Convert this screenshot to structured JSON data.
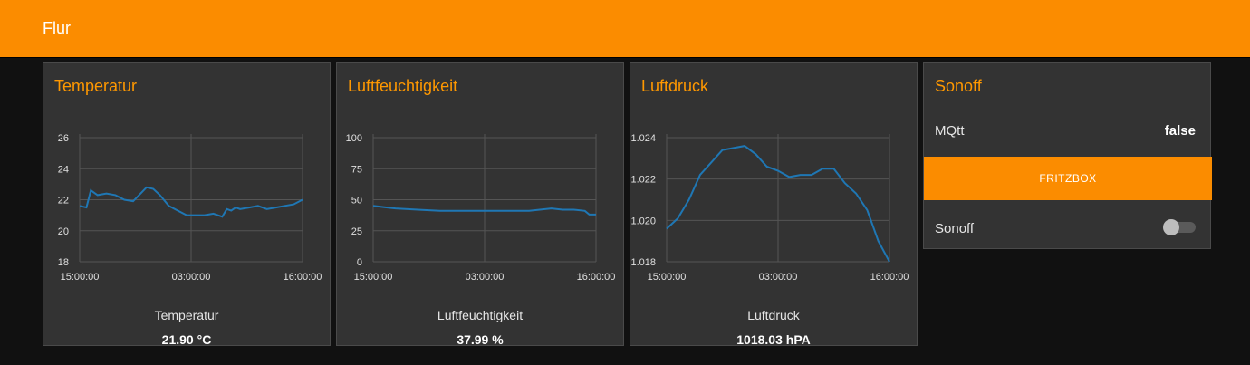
{
  "header": {
    "title": "Flur"
  },
  "colors": {
    "accent": "#fb8c00",
    "line": "#1f77b4"
  },
  "charts": [
    {
      "title": "Temperatur",
      "gauge_label": "Temperatur",
      "gauge_value": "21.90 °C",
      "y_ticks": [
        "26",
        "24",
        "22",
        "20",
        "18"
      ],
      "x_ticks": [
        "15:00:00",
        "03:00:00",
        "16:00:00"
      ]
    },
    {
      "title": "Luftfeuchtigkeit",
      "gauge_label": "Luftfeuchtigkeit",
      "gauge_value": "37.99 %",
      "y_ticks": [
        "100",
        "75",
        "50",
        "25",
        "0"
      ],
      "x_ticks": [
        "15:00:00",
        "03:00:00",
        "16:00:00"
      ]
    },
    {
      "title": "Luftdruck",
      "gauge_label": "Luftdruck",
      "gauge_value": "1018.03 hPA",
      "y_ticks": [
        "1.024",
        "1.022",
        "1.020",
        "1.018"
      ],
      "x_ticks": [
        "15:00:00",
        "03:00:00",
        "16:00:00"
      ]
    }
  ],
  "chart_data": [
    {
      "type": "line",
      "title": "Temperatur",
      "ylim": [
        18,
        26
      ],
      "x": [
        0.0,
        0.03,
        0.05,
        0.08,
        0.12,
        0.16,
        0.2,
        0.24,
        0.28,
        0.3,
        0.33,
        0.36,
        0.4,
        0.44,
        0.48,
        0.52,
        0.56,
        0.6,
        0.64,
        0.66,
        0.68,
        0.7,
        0.72,
        0.76,
        0.8,
        0.84,
        0.88,
        0.92,
        0.96,
        1.0
      ],
      "series": [
        {
          "values": [
            21.6,
            21.5,
            22.6,
            22.3,
            22.4,
            22.3,
            22.0,
            21.9,
            22.5,
            22.8,
            22.7,
            22.3,
            21.6,
            21.3,
            21.0,
            21.0,
            21.0,
            21.1,
            20.9,
            21.4,
            21.3,
            21.5,
            21.4,
            21.5,
            21.6,
            21.4,
            21.5,
            21.6,
            21.7,
            22.0
          ]
        }
      ]
    },
    {
      "type": "line",
      "title": "Luftfeuchtigkeit",
      "ylim": [
        0,
        100
      ],
      "x": [
        0.0,
        0.05,
        0.1,
        0.2,
        0.3,
        0.4,
        0.5,
        0.6,
        0.7,
        0.8,
        0.85,
        0.9,
        0.95,
        0.97,
        1.0
      ],
      "series": [
        {
          "values": [
            45,
            44,
            43,
            42,
            41,
            41,
            41,
            41,
            41,
            43,
            42,
            42,
            41,
            38,
            38
          ]
        }
      ]
    },
    {
      "type": "line",
      "title": "Luftdruck",
      "ylim": [
        1.018,
        1.024
      ],
      "x": [
        0.0,
        0.05,
        0.1,
        0.15,
        0.2,
        0.25,
        0.3,
        0.35,
        0.4,
        0.45,
        0.5,
        0.55,
        0.6,
        0.65,
        0.7,
        0.75,
        0.8,
        0.85,
        0.9,
        0.95,
        1.0
      ],
      "series": [
        {
          "values": [
            1.0196,
            1.0201,
            1.021,
            1.0222,
            1.0228,
            1.0234,
            1.0235,
            1.0236,
            1.0232,
            1.0226,
            1.0224,
            1.0221,
            1.0222,
            1.0222,
            1.0225,
            1.0225,
            1.0218,
            1.0213,
            1.0205,
            1.019,
            1.018
          ]
        }
      ]
    }
  ],
  "sonoff": {
    "title": "Sonoff",
    "mqtt_label": "MQtt",
    "mqtt_value": "false",
    "fritzbox_button": "FRITZBOX",
    "switch_label": "Sonoff",
    "switch_state": "off"
  }
}
